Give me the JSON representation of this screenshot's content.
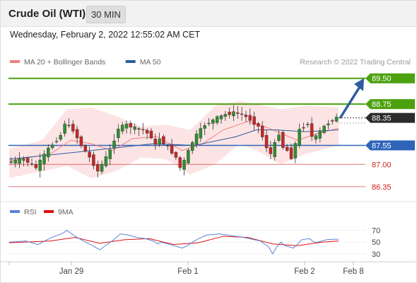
{
  "header": {
    "instrument": "Crude Oil (WTI)",
    "timeframe": "30 MIN",
    "datetime": "Wednesday, February 2, 2022 12:55:02 AM CET"
  },
  "chart_data": [
    {
      "type": "candlestick",
      "legend": [
        {
          "name": "MA 20 + Bollinger Bands",
          "color": "#f08080"
        },
        {
          "name": "MA 50",
          "color": "#2e5c9e"
        }
      ],
      "credit": "Research © 2022 Trading Central",
      "ylim": [
        86.1,
        89.7
      ],
      "levels": [
        {
          "value": 89.5,
          "label": "89.50",
          "kind": "resistance",
          "color": "#4ca10f"
        },
        {
          "value": 88.75,
          "label": "88.75",
          "kind": "resistance",
          "color": "#4ca10f"
        },
        {
          "value": 88.35,
          "label": "88.35",
          "kind": "last",
          "color": "#2b2b2b"
        },
        {
          "value": 87.55,
          "label": "87.55",
          "kind": "pivot",
          "color": "#2e65b8"
        },
        {
          "value": 87.0,
          "label": "87.00",
          "kind": "support",
          "color": "#d42020"
        },
        {
          "value": 86.35,
          "label": "86.35",
          "kind": "support",
          "color": "#d42020"
        }
      ],
      "projection": {
        "from": 88.35,
        "to": 89.5
      },
      "x_ticks": [
        "Jan 29",
        "Feb 1",
        "Feb 2",
        "Feb 8"
      ],
      "close_path": [
        [
          0,
          87.05
        ],
        [
          4,
          87.15
        ],
        [
          7,
          86.9
        ],
        [
          10,
          87.45
        ],
        [
          13,
          87.85
        ],
        [
          14,
          88.2
        ],
        [
          16,
          88.0
        ],
        [
          18,
          87.55
        ],
        [
          20,
          87.2
        ],
        [
          22,
          86.8
        ],
        [
          23,
          87.0
        ],
        [
          25,
          87.4
        ],
        [
          27,
          88.05
        ],
        [
          29,
          88.15
        ],
        [
          31,
          88.05
        ],
        [
          33,
          88.0
        ],
        [
          35,
          87.8
        ],
        [
          36,
          87.55
        ],
        [
          37,
          87.75
        ],
        [
          39,
          87.5
        ],
        [
          41,
          87.2
        ],
        [
          42,
          86.9
        ],
        [
          43,
          87.1
        ],
        [
          45,
          87.65
        ],
        [
          46,
          87.85
        ],
        [
          48,
          88.15
        ],
        [
          51,
          88.35
        ],
        [
          53,
          88.45
        ],
        [
          55,
          88.5
        ],
        [
          57,
          88.45
        ],
        [
          59,
          88.3
        ],
        [
          61,
          88.1
        ],
        [
          63,
          87.5
        ],
        [
          64,
          87.3
        ],
        [
          65,
          87.6
        ],
        [
          66,
          87.9
        ],
        [
          67,
          87.5
        ],
        [
          68,
          87.4
        ],
        [
          69,
          87.2
        ],
        [
          70,
          87.6
        ],
        [
          71,
          88.0
        ],
        [
          73,
          88.2
        ],
        [
          74,
          87.8
        ],
        [
          75,
          87.8
        ],
        [
          77,
          88.1
        ],
        [
          79,
          88.3
        ],
        [
          80,
          88.35
        ]
      ],
      "ma20_path": [
        [
          0,
          87.1
        ],
        [
          10,
          87.3
        ],
        [
          15,
          87.7
        ],
        [
          20,
          87.6
        ],
        [
          25,
          87.4
        ],
        [
          30,
          87.75
        ],
        [
          36,
          87.8
        ],
        [
          42,
          87.4
        ],
        [
          47,
          87.6
        ],
        [
          52,
          88.0
        ],
        [
          58,
          88.25
        ],
        [
          62,
          88.1
        ],
        [
          66,
          87.9
        ],
        [
          70,
          87.7
        ],
        [
          75,
          87.9
        ],
        [
          80,
          88.05
        ]
      ],
      "ma50_path": [
        [
          0,
          87.15
        ],
        [
          20,
          87.4
        ],
        [
          35,
          87.6
        ],
        [
          45,
          87.55
        ],
        [
          55,
          87.8
        ],
        [
          60,
          88.0
        ],
        [
          65,
          88.0
        ],
        [
          72,
          87.95
        ],
        [
          80,
          88.0
        ]
      ],
      "bollinger_upper": [
        [
          0,
          87.45
        ],
        [
          8,
          87.7
        ],
        [
          14,
          88.6
        ],
        [
          20,
          88.65
        ],
        [
          26,
          88.4
        ],
        [
          32,
          88.1
        ],
        [
          38,
          88.15
        ],
        [
          44,
          88.0
        ],
        [
          50,
          88.7
        ],
        [
          56,
          88.85
        ],
        [
          60,
          88.75
        ],
        [
          66,
          88.6
        ],
        [
          72,
          88.7
        ],
        [
          80,
          88.65
        ]
      ],
      "bollinger_lower": [
        [
          0,
          86.6
        ],
        [
          8,
          86.8
        ],
        [
          14,
          86.95
        ],
        [
          20,
          86.6
        ],
        [
          26,
          86.8
        ],
        [
          32,
          87.2
        ],
        [
          38,
          87.15
        ],
        [
          44,
          86.7
        ],
        [
          50,
          87.0
        ],
        [
          56,
          87.6
        ],
        [
          60,
          87.4
        ],
        [
          66,
          87.0
        ],
        [
          72,
          87.3
        ],
        [
          80,
          87.55
        ]
      ]
    },
    {
      "type": "line",
      "legend": [
        {
          "name": "RSI",
          "color": "#5b82d6"
        },
        {
          "name": "9MA",
          "color": "#e01010"
        }
      ],
      "ylim": [
        25,
        78
      ],
      "y_ticks": [
        70,
        50,
        30
      ],
      "rsi_path": [
        [
          0,
          50
        ],
        [
          4,
          52
        ],
        [
          7,
          46
        ],
        [
          10,
          57
        ],
        [
          13,
          65
        ],
        [
          14,
          70
        ],
        [
          16,
          60
        ],
        [
          18,
          52
        ],
        [
          20,
          45
        ],
        [
          22,
          37
        ],
        [
          23,
          42
        ],
        [
          25,
          52
        ],
        [
          27,
          64
        ],
        [
          29,
          62
        ],
        [
          31,
          58
        ],
        [
          33,
          56
        ],
        [
          35,
          52
        ],
        [
          36,
          47
        ],
        [
          37,
          50
        ],
        [
          39,
          46
        ],
        [
          41,
          42
        ],
        [
          42,
          40
        ],
        [
          43,
          43
        ],
        [
          45,
          52
        ],
        [
          46,
          56
        ],
        [
          48,
          62
        ],
        [
          51,
          64
        ],
        [
          53,
          62
        ],
        [
          55,
          60
        ],
        [
          57,
          58
        ],
        [
          59,
          55
        ],
        [
          61,
          52
        ],
        [
          63,
          42
        ],
        [
          64,
          30
        ],
        [
          65,
          42
        ],
        [
          66,
          50
        ],
        [
          67,
          44
        ],
        [
          68,
          42
        ],
        [
          69,
          40
        ],
        [
          70,
          46
        ],
        [
          71,
          54
        ],
        [
          73,
          56
        ],
        [
          74,
          50
        ],
        [
          75,
          50
        ],
        [
          77,
          54
        ],
        [
          79,
          55
        ],
        [
          80,
          55
        ]
      ],
      "ma9_path": [
        [
          0,
          49
        ],
        [
          10,
          52
        ],
        [
          16,
          58
        ],
        [
          22,
          48
        ],
        [
          28,
          54
        ],
        [
          34,
          56
        ],
        [
          40,
          46
        ],
        [
          46,
          49
        ],
        [
          52,
          60
        ],
        [
          58,
          58
        ],
        [
          64,
          47
        ],
        [
          70,
          44
        ],
        [
          76,
          50
        ],
        [
          80,
          52
        ]
      ]
    }
  ]
}
